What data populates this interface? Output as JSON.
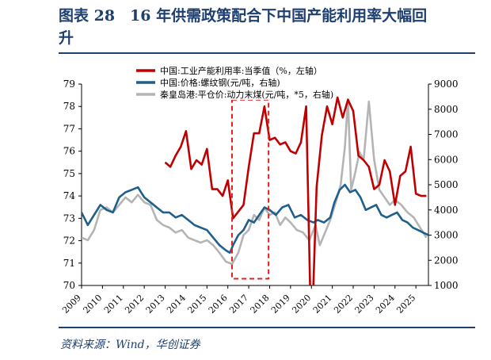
{
  "figure": {
    "title_line1": "图表 28　16 年供需政策配合下中国产能利用率大幅回",
    "title_line2": "升",
    "source": "资料来源：Wind，华创证券"
  },
  "colors": {
    "red": "#c00000",
    "blue": "#1f5f8b",
    "gray": "#b4b4b4",
    "box": "#e02020",
    "title": "#1f3f6e"
  },
  "chart_data": {
    "type": "line",
    "xlabel": "",
    "ylabel": "",
    "x_ticks": [
      "2009",
      "2010",
      "2011",
      "2012",
      "2013",
      "2014",
      "2015",
      "2016",
      "2017",
      "2018",
      "2019",
      "2020",
      "2021",
      "2022",
      "2023",
      "2024",
      "2025"
    ],
    "xlim": [
      2009,
      2025.6
    ],
    "ylim_left": [
      70,
      79
    ],
    "yticks_left": [
      70,
      71,
      72,
      73,
      74,
      75,
      76,
      77,
      78,
      79
    ],
    "ylim_right": [
      1000,
      9000
    ],
    "yticks_right": [
      1000,
      2000,
      3000,
      4000,
      5000,
      6000,
      7000,
      8000,
      9000
    ],
    "legend_position": "top-center",
    "highlight_box": {
      "x_start": 2016.2,
      "x_end": 2017.95,
      "y_bottom": 70.3,
      "y_top": 78.3
    },
    "series": [
      {
        "name": "中国:工业产能利用率:当季值（%，左轴）",
        "axis": "left",
        "color": "#c00000",
        "x": [
          2013.0,
          2013.25,
          2013.5,
          2013.75,
          2014.0,
          2014.25,
          2014.5,
          2014.75,
          2015.0,
          2015.25,
          2015.5,
          2015.75,
          2016.0,
          2016.25,
          2016.5,
          2016.75,
          2017.0,
          2017.25,
          2017.5,
          2017.75,
          2018.0,
          2018.25,
          2018.5,
          2018.75,
          2019.0,
          2019.25,
          2019.5,
          2019.75,
          2020.0,
          2020.25,
          2020.5,
          2020.75,
          2021.0,
          2021.25,
          2021.5,
          2021.75,
          2022.0,
          2022.25,
          2022.5,
          2022.75,
          2023.0,
          2023.25,
          2023.5,
          2023.75,
          2024.0,
          2024.25,
          2024.5,
          2024.75,
          2025.0,
          2025.25,
          2025.5
        ],
        "values": [
          75.5,
          75.3,
          75.8,
          76.2,
          76.9,
          75.2,
          75.6,
          75.4,
          76.1,
          74.3,
          74.3,
          74.0,
          74.7,
          73.0,
          73.3,
          73.6,
          75.3,
          76.8,
          76.8,
          78.0,
          76.5,
          76.6,
          76.3,
          76.4,
          76.0,
          75.9,
          76.4,
          78.0,
          67.3,
          74.4,
          76.7,
          78.0,
          77.2,
          78.4,
          77.5,
          78.3,
          77.8,
          75.8,
          75.6,
          75.3,
          74.3,
          74.5,
          75.6,
          75.1,
          73.6,
          74.9,
          75.1,
          76.2,
          74.1,
          74.0,
          74.0
        ]
      },
      {
        "name": "中国:价格:螺纹钢(元/吨，右轴)",
        "axis": "right",
        "color": "#1f5f8b",
        "x": [
          2009.0,
          2009.3,
          2009.6,
          2009.9,
          2010.2,
          2010.5,
          2010.8,
          2011.1,
          2011.4,
          2011.7,
          2012.0,
          2012.3,
          2012.6,
          2012.9,
          2013.2,
          2013.5,
          2013.8,
          2014.1,
          2014.4,
          2014.7,
          2015.0,
          2015.3,
          2015.6,
          2015.9,
          2016.1,
          2016.25,
          2016.5,
          2016.75,
          2017.0,
          2017.25,
          2017.5,
          2017.75,
          2018.0,
          2018.3,
          2018.6,
          2018.9,
          2019.2,
          2019.5,
          2019.8,
          2020.1,
          2020.3,
          2020.6,
          2020.9,
          2021.1,
          2021.35,
          2021.6,
          2021.85,
          2022.1,
          2022.35,
          2022.6,
          2022.85,
          2023.1,
          2023.35,
          2023.6,
          2023.85,
          2024.1,
          2024.35,
          2024.6,
          2024.85,
          2025.1,
          2025.35,
          2025.6
        ],
        "values": [
          3900,
          3400,
          3800,
          4200,
          4000,
          3900,
          4500,
          4700,
          4800,
          4900,
          4500,
          4300,
          4100,
          3900,
          3900,
          3700,
          3800,
          3600,
          3400,
          3300,
          3200,
          2900,
          2600,
          2400,
          2300,
          2600,
          3000,
          3200,
          3600,
          3500,
          3800,
          4100,
          4000,
          3800,
          4100,
          4200,
          3700,
          3800,
          3600,
          3500,
          3600,
          3500,
          3700,
          4300,
          4800,
          5000,
          4700,
          4800,
          4500,
          4000,
          4100,
          4200,
          3800,
          3700,
          3800,
          3900,
          3600,
          3500,
          3300,
          3200,
          3100,
          3000
        ]
      },
      {
        "name": "秦皇岛港:平仓价:动力末煤(元/吨，*5，右轴)",
        "axis": "right",
        "color": "#b4b4b4",
        "x": [
          2009.0,
          2009.3,
          2009.6,
          2009.9,
          2010.2,
          2010.5,
          2010.8,
          2011.1,
          2011.4,
          2011.7,
          2012.0,
          2012.3,
          2012.6,
          2012.9,
          2013.2,
          2013.5,
          2013.8,
          2014.1,
          2014.4,
          2014.7,
          2015.0,
          2015.3,
          2015.6,
          2015.9,
          2016.2,
          2016.5,
          2016.75,
          2017.0,
          2017.25,
          2017.5,
          2017.75,
          2018.0,
          2018.25,
          2018.5,
          2018.75,
          2019.0,
          2019.3,
          2019.6,
          2019.9,
          2020.2,
          2020.4,
          2020.6,
          2020.9,
          2021.2,
          2021.4,
          2021.6,
          2021.75,
          2021.9,
          2022.1,
          2022.3,
          2022.5,
          2022.75,
          2023.0,
          2023.25,
          2023.5,
          2023.75,
          2024.0,
          2024.3,
          2024.6,
          2024.9,
          2025.2,
          2025.5
        ],
        "values": [
          2900,
          2800,
          3200,
          4000,
          4100,
          3900,
          4200,
          4500,
          4300,
          4600,
          4300,
          4200,
          3600,
          3400,
          3300,
          3100,
          3200,
          2900,
          2800,
          2700,
          2800,
          2600,
          2300,
          1950,
          1850,
          2300,
          3000,
          3200,
          3800,
          3600,
          4100,
          3800,
          3900,
          3400,
          3700,
          3500,
          3200,
          3100,
          2800,
          3400,
          2600,
          3000,
          3600,
          4400,
          5000,
          6500,
          8400,
          4800,
          5500,
          6300,
          6000,
          8300,
          6000,
          4800,
          4500,
          4200,
          4400,
          4200,
          3900,
          3700,
          3300,
          2900
        ]
      }
    ]
  }
}
